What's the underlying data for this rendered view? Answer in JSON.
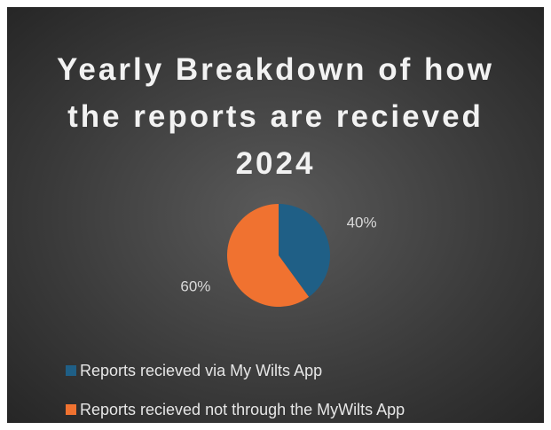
{
  "chart_data": {
    "type": "pie",
    "title": "Yearly Breakdown of how the reports are recieved 2024",
    "categories": [
      "Reports recieved via My Wilts App",
      "Reports recieved not through the MyWilts App"
    ],
    "values": [
      40,
      60
    ],
    "value_labels": [
      "40%",
      "60%"
    ],
    "colors": [
      "#1f5f86",
      "#f07230"
    ],
    "legend": "bottom"
  }
}
